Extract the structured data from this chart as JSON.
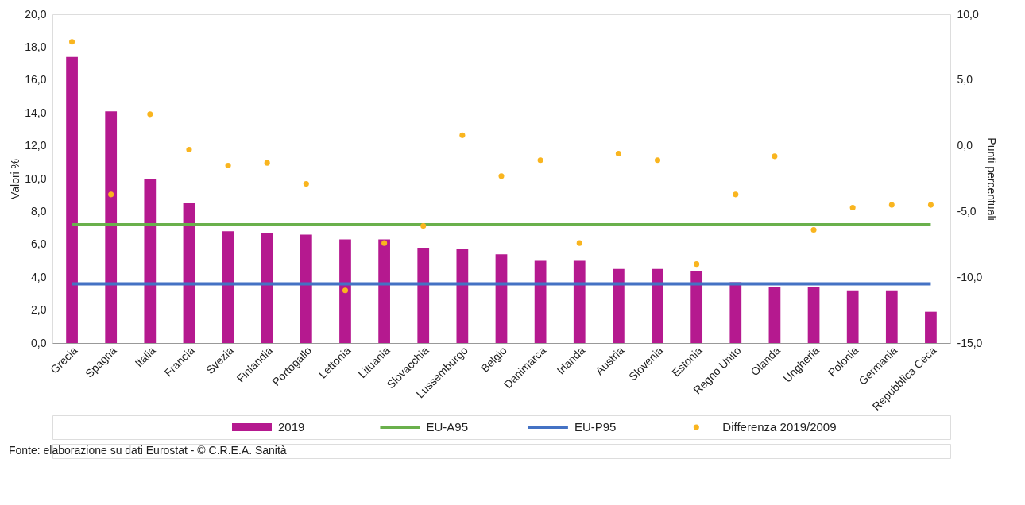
{
  "chart_data": {
    "type": "bar",
    "categories": [
      "Grecia",
      "Spagna",
      "Italia",
      "Francia",
      "Svezia",
      "Finlandia",
      "Portogallo",
      "Lettonia",
      "Lituania",
      "Slovacchia",
      "Lussemburgo",
      "Belgio",
      "Danimarca",
      "Irlanda",
      "Austria",
      "Slovenia",
      "Estonia",
      "Regno Unito",
      "Olanda",
      "Ungheria",
      "Polonia",
      "Germania",
      "Repubblica Ceca"
    ],
    "series": [
      {
        "name": "2019",
        "color": "#b5198f",
        "values": [
          17.4,
          14.1,
          10.0,
          8.5,
          6.8,
          6.7,
          6.6,
          6.3,
          6.3,
          5.8,
          5.7,
          5.4,
          5.0,
          5.0,
          4.5,
          4.5,
          4.4,
          3.7,
          3.4,
          3.4,
          3.2,
          3.2,
          1.9
        ]
      },
      {
        "name": "EU-A95",
        "type": "line",
        "color": "#6ab04c",
        "values": [
          7.2,
          7.2,
          7.2,
          7.2,
          7.2,
          7.2,
          7.2,
          7.2,
          7.2,
          7.2,
          7.2,
          7.2,
          7.2,
          7.2,
          7.2,
          7.2,
          7.2,
          7.2,
          7.2,
          7.2,
          7.2,
          7.2,
          7.2
        ]
      },
      {
        "name": "EU-P95",
        "type": "line",
        "color": "#4472c4",
        "values": [
          3.6,
          3.6,
          3.6,
          3.6,
          3.6,
          3.6,
          3.6,
          3.6,
          3.6,
          3.6,
          3.6,
          3.6,
          3.6,
          3.6,
          3.6,
          3.6,
          3.6,
          3.6,
          3.6,
          3.6,
          3.6,
          3.6,
          3.6
        ]
      },
      {
        "name": "Differenza 2019/2009",
        "type": "scatter",
        "marker": "circle",
        "axis": "y2",
        "color": "#f9b51f",
        "values": [
          7.9,
          -3.7,
          2.4,
          -0.3,
          -1.5,
          -1.3,
          -2.9,
          -11.0,
          -7.4,
          -6.1,
          0.8,
          -2.3,
          -1.1,
          -7.4,
          -0.6,
          -1.1,
          -9.0,
          -3.7,
          -0.8,
          -6.4,
          -4.7,
          -4.5,
          -4.5
        ]
      }
    ],
    "ylabel": "Valori %",
    "y2label": "Punti percentuali",
    "ylim": [
      0,
      20
    ],
    "yticks": [
      {
        "value": 0,
        "label": "0,0"
      },
      {
        "value": 2,
        "label": "2,0"
      },
      {
        "value": 4,
        "label": "4,0"
      },
      {
        "value": 6,
        "label": "6,0"
      },
      {
        "value": 8,
        "label": "8,0"
      },
      {
        "value": 10,
        "label": "10,0"
      },
      {
        "value": 12,
        "label": "12,0"
      },
      {
        "value": 14,
        "label": "14,0"
      },
      {
        "value": 16,
        "label": "16,0"
      },
      {
        "value": 18,
        "label": "18,0"
      },
      {
        "value": 20,
        "label": "20,0"
      }
    ],
    "y2lim": [
      -15,
      10
    ],
    "y2ticks": [
      {
        "value": -15,
        "label": "-15,0"
      },
      {
        "value": -10,
        "label": "-10,0"
      },
      {
        "value": -5,
        "label": "-5,0"
      },
      {
        "value": 0,
        "label": "0,0"
      },
      {
        "value": 5,
        "label": "5,0"
      },
      {
        "value": 10,
        "label": "10,0"
      }
    ],
    "grid": false,
    "legend": "bottom",
    "annotations": [
      "Fonte: elaborazione su dati Eurostat - © C.R.E.A. Sanità"
    ]
  }
}
